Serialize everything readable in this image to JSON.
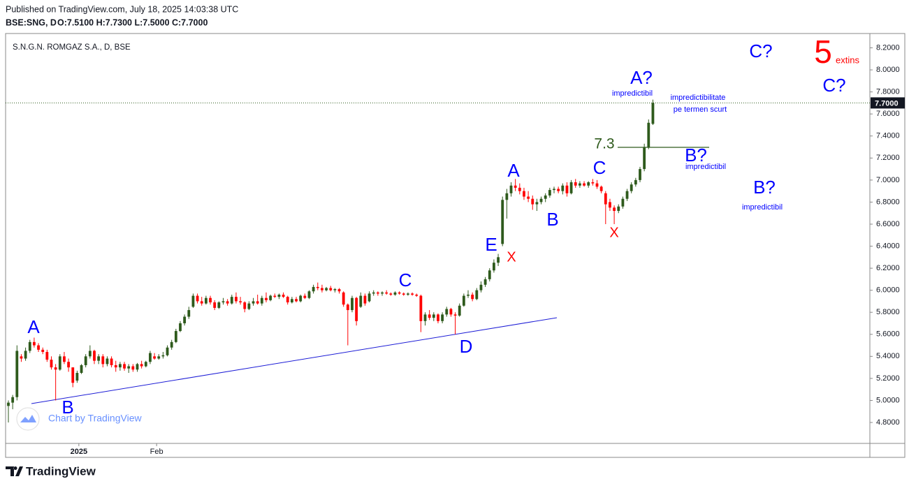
{
  "header": {
    "published": "Published on TradingView.com, July 18, 2025 14:03:38 UTC",
    "symbol": "BSE:SNG, D",
    "ohlc": "O:7.5100 H:7.7300 L:7.5000 C:7.7000"
  },
  "chart_data": {
    "type": "candlestick",
    "title": "S.N.G.N. ROMGAZ S.A., D, BSE",
    "up_color": "#2e5a1c",
    "down_color": "#ff0000",
    "grid": false,
    "ylim": [
      4.61,
      8.33
    ],
    "xlim": [
      -0.65,
      200.5
    ],
    "yticks": [
      {
        "value": 4.8,
        "label": "4.8000"
      },
      {
        "value": 5.0,
        "label": "5.0000"
      },
      {
        "value": 5.2,
        "label": "5.2000"
      },
      {
        "value": 5.4,
        "label": "5.4000"
      },
      {
        "value": 5.6,
        "label": "5.6000"
      },
      {
        "value": 5.8,
        "label": "5.8000"
      },
      {
        "value": 6.0,
        "label": "6.0000"
      },
      {
        "value": 6.2,
        "label": "6.2000"
      },
      {
        "value": 6.4,
        "label": "6.4000"
      },
      {
        "value": 6.6,
        "label": "6.6000"
      },
      {
        "value": 6.8,
        "label": "6.8000"
      },
      {
        "value": 7.0,
        "label": "7.0000"
      },
      {
        "value": 7.2,
        "label": "7.2000"
      },
      {
        "value": 7.4,
        "label": "7.4000"
      },
      {
        "value": 7.6,
        "label": "7.6000"
      },
      {
        "value": 7.8,
        "label": "7.8000"
      },
      {
        "value": 8.0,
        "label": "8.0000"
      },
      {
        "value": 8.2,
        "label": "8.2000"
      }
    ],
    "xticks": [
      {
        "value": 16.4,
        "label": "2025"
      },
      {
        "value": 34.5,
        "label": "Feb"
      }
    ],
    "last_price": {
      "value": 7.7,
      "label": "7.7000"
    },
    "candles": [
      [
        4.95,
        5.0,
        4.8,
        4.98
      ],
      [
        4.98,
        5.05,
        4.92,
        5.03
      ],
      [
        5.03,
        5.5,
        5.0,
        5.45
      ],
      [
        5.4,
        5.42,
        5.35,
        5.38
      ],
      [
        5.38,
        5.48,
        5.36,
        5.45
      ],
      [
        5.45,
        5.55,
        5.43,
        5.53
      ],
      [
        5.53,
        5.57,
        5.48,
        5.5
      ],
      [
        5.5,
        5.52,
        5.44,
        5.46
      ],
      [
        5.46,
        5.48,
        5.42,
        5.44
      ],
      [
        5.44,
        5.46,
        5.35,
        5.37
      ],
      [
        5.37,
        5.4,
        5.28,
        5.3
      ],
      [
        5.3,
        5.33,
        5.0,
        5.28
      ],
      [
        5.28,
        5.42,
        5.27,
        5.4
      ],
      [
        5.4,
        5.44,
        5.33,
        5.35
      ],
      [
        5.35,
        5.38,
        5.26,
        5.3
      ],
      [
        5.3,
        5.3,
        5.12,
        5.16
      ],
      [
        5.18,
        5.27,
        5.16,
        5.25
      ],
      [
        5.25,
        5.33,
        5.24,
        5.32
      ],
      [
        5.32,
        5.42,
        5.3,
        5.4
      ],
      [
        5.4,
        5.5,
        5.38,
        5.45
      ],
      [
        5.45,
        5.46,
        5.33,
        5.36
      ],
      [
        5.36,
        5.42,
        5.33,
        5.4
      ],
      [
        5.4,
        5.42,
        5.3,
        5.33
      ],
      [
        5.33,
        5.4,
        5.31,
        5.38
      ],
      [
        5.38,
        5.4,
        5.3,
        5.32
      ],
      [
        5.32,
        5.36,
        5.26,
        5.3
      ],
      [
        5.3,
        5.35,
        5.27,
        5.33
      ],
      [
        5.33,
        5.35,
        5.27,
        5.29
      ],
      [
        5.29,
        5.33,
        5.25,
        5.31
      ],
      [
        5.31,
        5.33,
        5.26,
        5.28
      ],
      [
        5.28,
        5.34,
        5.26,
        5.33
      ],
      [
        5.33,
        5.36,
        5.29,
        5.31
      ],
      [
        5.31,
        5.36,
        5.3,
        5.35
      ],
      [
        5.35,
        5.45,
        5.33,
        5.43
      ],
      [
        5.4,
        5.43,
        5.37,
        5.38
      ],
      [
        5.38,
        5.42,
        5.37,
        5.4
      ],
      [
        5.4,
        5.44,
        5.38,
        5.41
      ],
      [
        5.41,
        5.5,
        5.4,
        5.48
      ],
      [
        5.48,
        5.55,
        5.46,
        5.53
      ],
      [
        5.53,
        5.65,
        5.52,
        5.63
      ],
      [
        5.63,
        5.72,
        5.62,
        5.7
      ],
      [
        5.7,
        5.78,
        5.68,
        5.76
      ],
      [
        5.76,
        5.85,
        5.74,
        5.82
      ],
      [
        5.85,
        5.97,
        5.84,
        5.95
      ],
      [
        5.95,
        5.97,
        5.88,
        5.9
      ],
      [
        5.9,
        5.94,
        5.86,
        5.88
      ],
      [
        5.88,
        5.95,
        5.87,
        5.93
      ],
      [
        5.93,
        5.95,
        5.87,
        5.89
      ],
      [
        5.89,
        5.91,
        5.82,
        5.84
      ],
      [
        5.84,
        5.9,
        5.83,
        5.89
      ],
      [
        5.89,
        5.93,
        5.87,
        5.9
      ],
      [
        5.9,
        5.92,
        5.86,
        5.88
      ],
      [
        5.88,
        5.96,
        5.87,
        5.94
      ],
      [
        5.94,
        5.98,
        5.88,
        5.9
      ],
      [
        5.9,
        5.94,
        5.87,
        5.89
      ],
      [
        5.89,
        5.9,
        5.8,
        5.83
      ],
      [
        5.83,
        5.9,
        5.82,
        5.88
      ],
      [
        5.88,
        5.93,
        5.86,
        5.9
      ],
      [
        5.9,
        5.96,
        5.87,
        5.88
      ],
      [
        5.88,
        5.95,
        5.86,
        5.93
      ],
      [
        5.93,
        5.98,
        5.89,
        5.91
      ],
      [
        5.91,
        5.96,
        5.9,
        5.95
      ],
      [
        5.95,
        5.97,
        5.93,
        5.94
      ],
      [
        5.94,
        5.97,
        5.92,
        5.96
      ],
      [
        5.96,
        5.98,
        5.93,
        5.94
      ],
      [
        5.94,
        5.95,
        5.87,
        5.89
      ],
      [
        5.89,
        5.94,
        5.88,
        5.92
      ],
      [
        5.92,
        5.94,
        5.89,
        5.9
      ],
      [
        5.9,
        5.96,
        5.89,
        5.95
      ],
      [
        5.95,
        5.97,
        5.92,
        5.93
      ],
      [
        5.93,
        6.0,
        5.92,
        5.99
      ],
      [
        5.99,
        6.05,
        5.97,
        6.03
      ],
      [
        6.03,
        6.07,
        6.0,
        6.02
      ],
      [
        6.02,
        6.05,
        5.98,
        6.0
      ],
      [
        6.0,
        6.03,
        5.99,
        6.02
      ],
      [
        6.02,
        6.04,
        5.99,
        6.0
      ],
      [
        6.0,
        6.02,
        5.98,
        6.01
      ],
      [
        6.01,
        6.02,
        5.97,
        5.99
      ],
      [
        5.98,
        5.99,
        5.85,
        5.87
      ],
      [
        5.87,
        5.88,
        5.5,
        5.82
      ],
      [
        5.82,
        5.95,
        5.8,
        5.93
      ],
      [
        5.93,
        5.94,
        5.68,
        5.72
      ],
      [
        5.85,
        5.98,
        5.84,
        5.95
      ],
      [
        5.95,
        5.97,
        5.86,
        5.88
      ],
      [
        5.9,
        5.99,
        5.89,
        5.97
      ],
      [
        5.97,
        6.0,
        5.95,
        5.98
      ],
      [
        5.98,
        5.99,
        5.95,
        5.97
      ],
      [
        5.97,
        5.99,
        5.95,
        5.98
      ],
      [
        5.98,
        6.0,
        5.96,
        5.97
      ],
      [
        5.97,
        5.98,
        5.95,
        5.96
      ],
      [
        5.96,
        5.99,
        5.95,
        5.98
      ],
      [
        5.98,
        5.99,
        5.96,
        5.97
      ],
      [
        5.97,
        5.98,
        5.95,
        5.96
      ],
      [
        5.96,
        5.98,
        5.95,
        5.97
      ],
      [
        5.97,
        5.98,
        5.95,
        5.96
      ],
      [
        5.96,
        5.97,
        5.94,
        5.95
      ],
      [
        5.95,
        5.96,
        5.62,
        5.72
      ],
      [
        5.72,
        5.8,
        5.68,
        5.78
      ],
      [
        5.78,
        5.82,
        5.73,
        5.75
      ],
      [
        5.75,
        5.8,
        5.72,
        5.78
      ],
      [
        5.78,
        5.79,
        5.7,
        5.72
      ],
      [
        5.72,
        5.8,
        5.7,
        5.78
      ],
      [
        5.78,
        5.85,
        5.76,
        5.83
      ],
      [
        5.83,
        5.84,
        5.76,
        5.78
      ],
      [
        5.78,
        5.8,
        5.6,
        5.77
      ],
      [
        5.77,
        5.88,
        5.76,
        5.86
      ],
      [
        5.86,
        5.97,
        5.85,
        5.95
      ],
      [
        5.95,
        6.0,
        5.93,
        5.96
      ],
      [
        5.96,
        5.98,
        5.9,
        5.92
      ],
      [
        5.92,
        6.02,
        5.91,
        6.0
      ],
      [
        6.0,
        6.08,
        5.98,
        6.05
      ],
      [
        6.05,
        6.12,
        6.03,
        6.1
      ],
      [
        6.1,
        6.2,
        6.08,
        6.18
      ],
      [
        6.18,
        6.28,
        6.16,
        6.25
      ],
      [
        6.25,
        6.33,
        6.22,
        6.3
      ],
      [
        6.42,
        6.85,
        6.4,
        6.82
      ],
      [
        6.82,
        6.92,
        6.65,
        6.88
      ],
      [
        6.88,
        6.98,
        6.85,
        6.95
      ],
      [
        6.95,
        7.01,
        6.9,
        6.93
      ],
      [
        6.93,
        6.97,
        6.87,
        6.9
      ],
      [
        6.9,
        6.93,
        6.82,
        6.85
      ],
      [
        6.85,
        6.9,
        6.8,
        6.83
      ],
      [
        6.83,
        6.86,
        6.73,
        6.78
      ],
      [
        6.78,
        6.83,
        6.72,
        6.8
      ],
      [
        6.8,
        6.85,
        6.78,
        6.83
      ],
      [
        6.83,
        6.88,
        6.8,
        6.86
      ],
      [
        6.86,
        6.93,
        6.84,
        6.91
      ],
      [
        6.91,
        6.94,
        6.88,
        6.92
      ],
      [
        6.92,
        6.94,
        6.88,
        6.9
      ],
      [
        6.9,
        6.97,
        6.87,
        6.95
      ],
      [
        6.95,
        6.98,
        6.85,
        6.88
      ],
      [
        6.88,
        7.0,
        6.87,
        6.98
      ],
      [
        6.98,
        7.01,
        6.93,
        6.95
      ],
      [
        6.95,
        6.99,
        6.93,
        6.97
      ],
      [
        6.97,
        6.99,
        6.94,
        6.95
      ],
      [
        6.95,
        6.99,
        6.93,
        6.98
      ],
      [
        6.98,
        7.01,
        6.95,
        6.97
      ],
      [
        6.97,
        7.0,
        6.92,
        6.94
      ],
      [
        6.94,
        6.95,
        6.88,
        6.9
      ],
      [
        6.88,
        6.9,
        6.6,
        6.78
      ],
      [
        6.8,
        6.83,
        6.72,
        6.75
      ],
      [
        6.75,
        6.77,
        6.6,
        6.72
      ],
      [
        6.72,
        6.78,
        6.7,
        6.76
      ],
      [
        6.76,
        6.85,
        6.74,
        6.83
      ],
      [
        6.83,
        6.92,
        6.81,
        6.9
      ],
      [
        6.9,
        6.98,
        6.88,
        6.96
      ],
      [
        6.96,
        7.02,
        6.94,
        7.0
      ],
      [
        7.0,
        7.12,
        6.98,
        7.1
      ],
      [
        7.1,
        7.33,
        7.08,
        7.3
      ],
      [
        7.3,
        7.55,
        7.28,
        7.52
      ],
      [
        7.51,
        7.73,
        7.5,
        7.7
      ]
    ],
    "annotations": [
      {
        "text": "A",
        "color": "#0000ff"
      },
      {
        "text": "B",
        "color": "#0000ff"
      },
      {
        "text": "C",
        "color": "#0000ff"
      },
      {
        "text": "D",
        "color": "#0000ff"
      },
      {
        "text": "E",
        "color": "#0000ff"
      },
      {
        "text": "X",
        "color": "#ff0000"
      },
      {
        "text": "A",
        "color": "#0000ff"
      },
      {
        "text": "B",
        "color": "#0000ff"
      },
      {
        "text": "C",
        "color": "#0000ff"
      },
      {
        "text": "X",
        "color": "#ff0000"
      },
      {
        "text": "A?",
        "color": "#0000ff"
      },
      {
        "text": "impredictibil",
        "color": "#0000ff"
      },
      {
        "text": "impredictibilitate",
        "color": "#0000ff"
      },
      {
        "text": "pe termen scurt",
        "color": "#0000ff"
      },
      {
        "text": "7.3",
        "color": "#2e5a1c"
      },
      {
        "text": "B?",
        "color": "#0000ff"
      },
      {
        "text": "impredictibil",
        "color": "#0000ff"
      },
      {
        "text": "B?",
        "color": "#0000ff"
      },
      {
        "text": "impredictibil",
        "color": "#0000ff"
      },
      {
        "text": "C?",
        "color": "#0000ff"
      },
      {
        "text": "C?",
        "color": "#0000ff"
      },
      {
        "text": "5",
        "color": "#ff0000"
      },
      {
        "text": "extins",
        "color": "#ff0000"
      }
    ]
  },
  "watermark": "Chart by TradingView",
  "footer": "TradingView"
}
